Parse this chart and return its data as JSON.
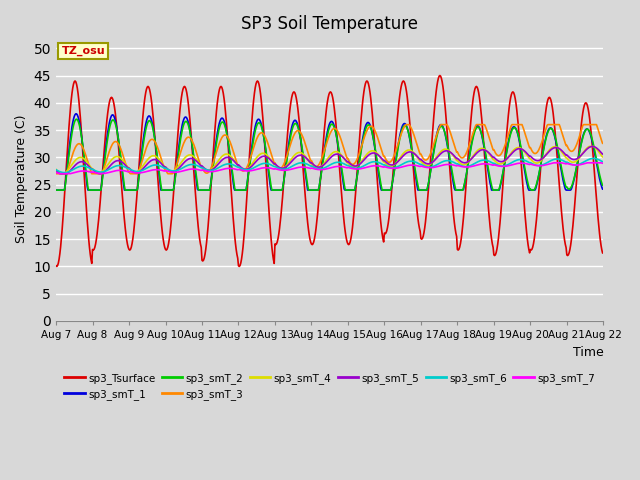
{
  "title": "SP3 Soil Temperature",
  "xlabel": "Time",
  "ylabel": "Soil Temperature (C)",
  "ylim": [
    0,
    52
  ],
  "yticks": [
    0,
    5,
    10,
    15,
    20,
    25,
    30,
    35,
    40,
    45,
    50
  ],
  "tz_label": "TZ_osu",
  "series_colors": {
    "sp3_Tsurface": "#dd0000",
    "sp3_smT_1": "#0000dd",
    "sp3_smT_2": "#00cc00",
    "sp3_smT_3": "#ff8800",
    "sp3_smT_4": "#dddd00",
    "sp3_smT_5": "#9900cc",
    "sp3_smT_6": "#00cccc",
    "sp3_smT_7": "#ff00ff"
  },
  "x_tick_labels": [
    "Aug 7",
    "Aug 8",
    "Aug 9",
    "Aug 10",
    "Aug 11",
    "Aug 12",
    "Aug 13",
    "Aug 14",
    "Aug 15",
    "Aug 16",
    "Aug 17",
    "Aug 18",
    "Aug 19",
    "Aug 20",
    "Aug 21",
    "Aug 22"
  ],
  "bg_color": "#d8d8d8",
  "grid_color": "#ffffff"
}
